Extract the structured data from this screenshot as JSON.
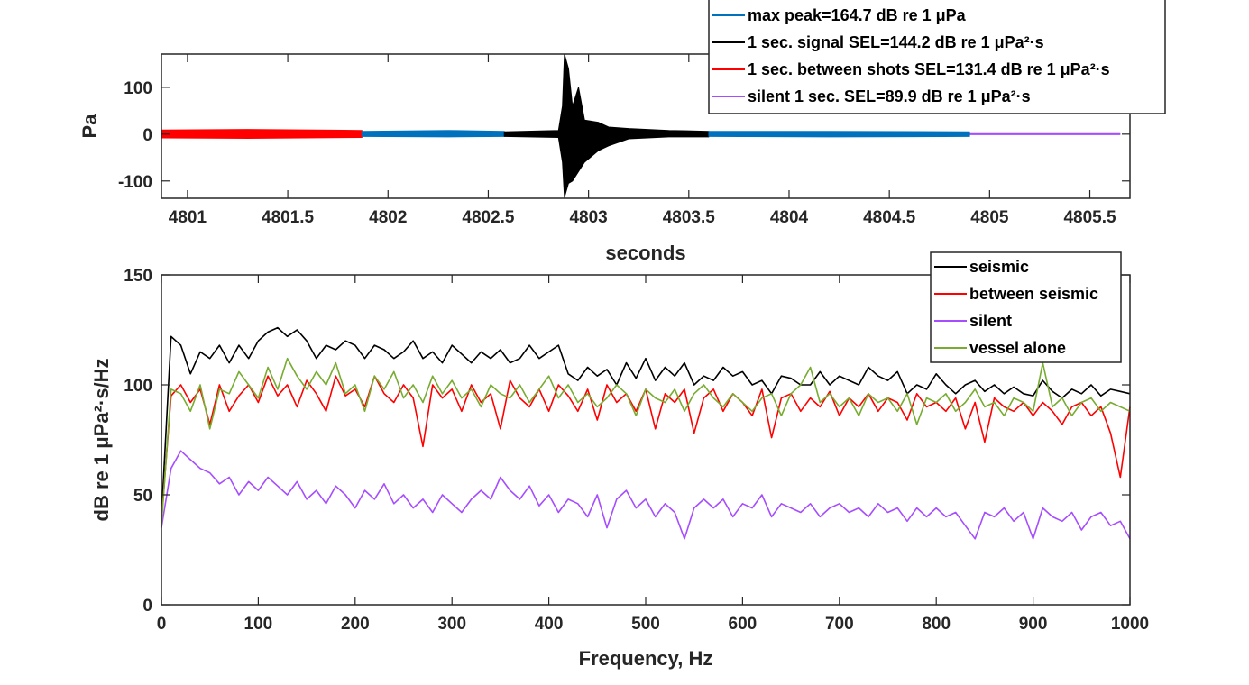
{
  "chart_data": [
    {
      "type": "line",
      "xlabel": "seconds",
      "ylabel": "Pa",
      "xlim": [
        4800.87,
        4805.7
      ],
      "ylim": [
        -137,
        171
      ],
      "xticks": [
        "4801",
        "4801.5",
        "4802",
        "4802.5",
        "4803",
        "4803.5",
        "4804",
        "4804.5",
        "4805",
        "4805.5"
      ],
      "yticks": [
        "-100",
        "0",
        "100"
      ],
      "grid": false,
      "legend_position": "top-right",
      "legend": [
        {
          "label": "max peak=164.7 dB re 1 μPa",
          "color": "#0072BD"
        },
        {
          "label": "1 sec. signal SEL=144.2 dB re 1 μPa²·s",
          "color": "#000000"
        },
        {
          "label": "1 sec. between shots SEL=131.4 dB re 1 μPa²·s",
          "color": "#FF0000"
        },
        {
          "label": "silent 1 sec. SEL=89.9 dB re 1 μPa²·s",
          "color": "#A64DFF"
        }
      ],
      "series": [
        {
          "color": "#A64DFF",
          "envelope": [
            [
              4801.47,
              1,
              -1
            ],
            [
              4805.65,
              1,
              -1
            ]
          ]
        },
        {
          "color": "#FF0000",
          "envelope": [
            [
              4800.87,
              9,
              -8
            ],
            [
              4801.3,
              10,
              -9
            ],
            [
              4801.87,
              8,
              -7
            ]
          ]
        },
        {
          "color": "#0072BD",
          "envelope": [
            [
              4801.87,
              6,
              -5
            ],
            [
              4802.3,
              8,
              -6
            ],
            [
              4802.58,
              6,
              -5
            ]
          ]
        },
        {
          "color": "#000000",
          "envelope": [
            [
              4802.58,
              5,
              -5
            ],
            [
              4802.85,
              8,
              -7
            ],
            [
              4802.87,
              60,
              -60
            ],
            [
              4802.88,
              171,
              -135
            ],
            [
              4802.9,
              140,
              -105
            ],
            [
              4802.92,
              60,
              -100
            ],
            [
              4802.95,
              100,
              -80
            ],
            [
              4802.98,
              30,
              -60
            ],
            [
              4803.05,
              25,
              -35
            ],
            [
              4803.1,
              15,
              -25
            ],
            [
              4803.2,
              12,
              -10
            ],
            [
              4803.4,
              8,
              -6
            ],
            [
              4803.6,
              6,
              -6
            ]
          ]
        },
        {
          "color": "#0072BD",
          "envelope": [
            [
              4803.6,
              6,
              -5
            ],
            [
              4804.2,
              6,
              -6
            ],
            [
              4804.9,
              5,
              -5
            ]
          ]
        }
      ]
    },
    {
      "type": "line",
      "xlabel": "Frequency, Hz",
      "ylabel": "dB re 1 μPa²·s/Hz",
      "xlim": [
        0,
        1000
      ],
      "ylim": [
        0,
        150
      ],
      "xticks": [
        "0",
        "100",
        "200",
        "300",
        "400",
        "500",
        "600",
        "700",
        "800",
        "900",
        "1000"
      ],
      "yticks": [
        "0",
        "50",
        "100",
        "150"
      ],
      "grid": false,
      "legend_position": "top-right",
      "x_step": 10,
      "series": [
        {
          "name": "seismic",
          "color": "#000000",
          "values": [
            40,
            122,
            118,
            105,
            115,
            112,
            118,
            110,
            118,
            112,
            120,
            124,
            126,
            122,
            125,
            120,
            112,
            118,
            116,
            120,
            118,
            112,
            118,
            116,
            112,
            115,
            120,
            112,
            115,
            110,
            118,
            114,
            110,
            115,
            112,
            116,
            110,
            112,
            118,
            112,
            115,
            118,
            105,
            102,
            108,
            104,
            107,
            100,
            110,
            103,
            112,
            102,
            108,
            104,
            110,
            100,
            104,
            102,
            108,
            104,
            106,
            100,
            102,
            96,
            104,
            103,
            100,
            100,
            106,
            100,
            104,
            102,
            100,
            108,
            104,
            102,
            106,
            96,
            100,
            98,
            105,
            100,
            96,
            100,
            102,
            97,
            100,
            96,
            99,
            96,
            95,
            102,
            97,
            94,
            98,
            96,
            100,
            95,
            98,
            97,
            96
          ]
        },
        {
          "name": "between seismic",
          "color": "#FF0000",
          "values": [
            38,
            95,
            100,
            92,
            98,
            82,
            100,
            88,
            95,
            100,
            92,
            104,
            95,
            100,
            90,
            102,
            96,
            88,
            104,
            95,
            98,
            90,
            104,
            96,
            92,
            100,
            94,
            72,
            100,
            94,
            98,
            88,
            100,
            92,
            96,
            80,
            102,
            94,
            90,
            98,
            88,
            100,
            95,
            88,
            98,
            84,
            100,
            92,
            96,
            88,
            98,
            80,
            96,
            92,
            98,
            78,
            94,
            98,
            88,
            96,
            92,
            86,
            98,
            76,
            94,
            96,
            88,
            94,
            90,
            97,
            86,
            94,
            90,
            96,
            88,
            94,
            92,
            84,
            96,
            90,
            92,
            88,
            94,
            80,
            92,
            74,
            94,
            90,
            88,
            92,
            86,
            92,
            88,
            82,
            90,
            92,
            86,
            90,
            78,
            58,
            90
          ]
        },
        {
          "name": "silent",
          "color": "#A64DFF",
          "values": [
            35,
            62,
            70,
            66,
            62,
            60,
            55,
            58,
            50,
            56,
            52,
            58,
            54,
            50,
            56,
            48,
            52,
            46,
            54,
            50,
            44,
            52,
            48,
            55,
            46,
            50,
            44,
            48,
            42,
            50,
            46,
            42,
            48,
            52,
            48,
            58,
            52,
            48,
            54,
            45,
            50,
            42,
            48,
            46,
            40,
            50,
            35,
            48,
            52,
            44,
            48,
            40,
            46,
            42,
            30,
            44,
            48,
            44,
            48,
            40,
            46,
            44,
            50,
            40,
            46,
            44,
            42,
            46,
            40,
            44,
            46,
            42,
            44,
            40,
            46,
            42,
            44,
            38,
            44,
            40,
            44,
            40,
            42,
            36,
            30,
            42,
            40,
            44,
            38,
            42,
            30,
            44,
            40,
            38,
            42,
            34,
            40,
            42,
            36,
            38,
            30
          ]
        },
        {
          "name": "vessel alone",
          "color": "#77AC30",
          "values": [
            36,
            98,
            96,
            88,
            100,
            80,
            98,
            96,
            106,
            100,
            94,
            108,
            98,
            112,
            104,
            98,
            106,
            100,
            110,
            96,
            100,
            88,
            104,
            98,
            106,
            94,
            100,
            92,
            104,
            96,
            102,
            94,
            98,
            90,
            100,
            96,
            94,
            100,
            92,
            98,
            104,
            94,
            100,
            92,
            96,
            90,
            94,
            100,
            96,
            86,
            98,
            94,
            92,
            98,
            88,
            96,
            100,
            94,
            90,
            96,
            92,
            88,
            94,
            96,
            86,
            96,
            100,
            108,
            92,
            96,
            90,
            94,
            86,
            96,
            92,
            94,
            88,
            96,
            82,
            94,
            92,
            96,
            88,
            92,
            98,
            90,
            92,
            86,
            94,
            92,
            88,
            110,
            90,
            94,
            86,
            92,
            94,
            88,
            92,
            90,
            88
          ]
        }
      ]
    }
  ]
}
